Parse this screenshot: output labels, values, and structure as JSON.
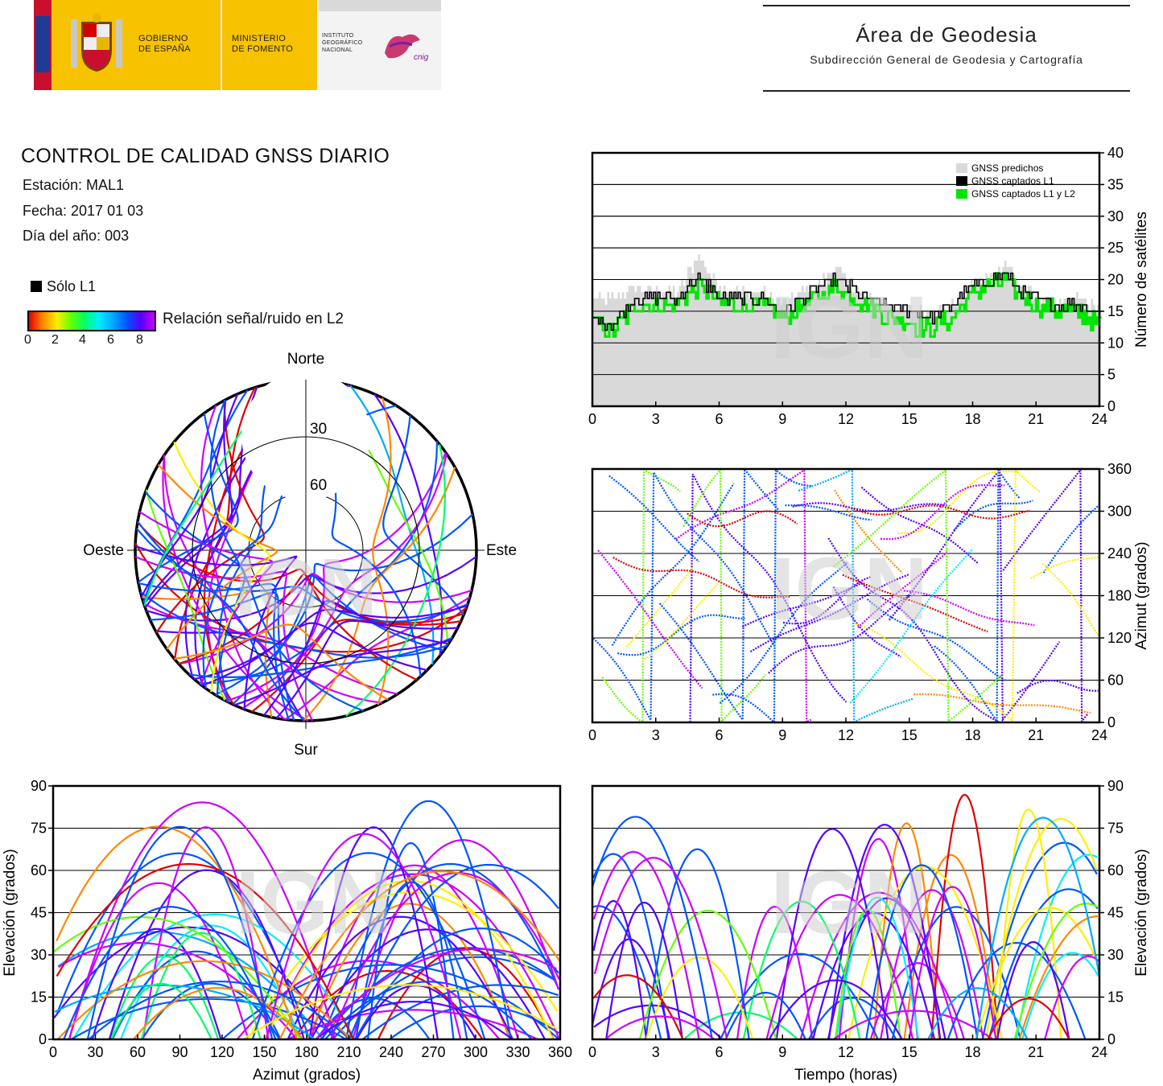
{
  "header": {
    "gobierno": "GOBIERNO\nDE ESPAÑA",
    "ministerio": "MINISTERIO\nDE FOMENTO",
    "instituto": "INSTITUTO\nGEOGRÁFICO\nNACIONAL",
    "cnig": "cnig",
    "area_title": "Área de Geodesia",
    "area_sub": "Subdirección General de Geodesia y Cartografía"
  },
  "report": {
    "title": "CONTROL DE CALIDAD GNSS DIARIO",
    "station": "Estación: MAL1",
    "date": "Fecha: 2017 01 03",
    "doy": "Día del año: 003",
    "solo_l1": "Sólo L1",
    "snr_label": "Relación señal/ruido en L2",
    "snr_ticks": [
      "0",
      "2",
      "4",
      "6",
      "8"
    ]
  },
  "watermark": "IGN",
  "colors": {
    "predicted": "#d9d9d9",
    "l1": "#000000",
    "l1l2": "#00e600",
    "snr_scale": [
      "#e00000",
      "#ff8800",
      "#ffee00",
      "#66ff00",
      "#00ff66",
      "#00eeff",
      "#00aaff",
      "#0055ff",
      "#5500ff",
      "#cc00ff"
    ]
  },
  "chart_data": [
    {
      "type": "area",
      "id": "satellite-count",
      "x": [
        0,
        1,
        2,
        3,
        4,
        4.5,
        5,
        5.5,
        6,
        7,
        8,
        9,
        10,
        11,
        11.5,
        12,
        13,
        14,
        15,
        16,
        17,
        18,
        19,
        19.5,
        20,
        21,
        22,
        23,
        24
      ],
      "series": [
        {
          "name": "GNSS predichos",
          "values": [
            17,
            17,
            19,
            18,
            18,
            21,
            24,
            21,
            19,
            18,
            18,
            16,
            18,
            20,
            22,
            20,
            17,
            16,
            15,
            15,
            16,
            19,
            21,
            23,
            20,
            17,
            16,
            17,
            15
          ]
        },
        {
          "name": "GNSS captados L1",
          "values": [
            14,
            13,
            17,
            17,
            17,
            19,
            20,
            19,
            17,
            17,
            17,
            15,
            17,
            19,
            20,
            19,
            17,
            16,
            15,
            14,
            16,
            19,
            20,
            21,
            19,
            17,
            16,
            16,
            15
          ]
        },
        {
          "name": "GNSS captados L1 y L2",
          "values": [
            13,
            12,
            16,
            16,
            16,
            18,
            19,
            18,
            16,
            16,
            16,
            14,
            16,
            18,
            19,
            18,
            16,
            14,
            13,
            12,
            14,
            18,
            19,
            20,
            18,
            16,
            15,
            15,
            13
          ]
        }
      ],
      "xlim": [
        0,
        24
      ],
      "ylim": [
        0,
        40
      ],
      "xticks": [
        "0",
        "3",
        "6",
        "9",
        "12",
        "15",
        "18",
        "21",
        "24"
      ],
      "yticks": [
        "0",
        "5",
        "10",
        "15",
        "20",
        "25",
        "30",
        "35",
        "40"
      ],
      "ylabel": "Número de satélites",
      "legend": "top-right",
      "grid": true
    },
    {
      "type": "line",
      "id": "azimuth-time",
      "xlim": [
        0,
        24
      ],
      "ylim": [
        0,
        360
      ],
      "xticks": [
        "0",
        "3",
        "6",
        "9",
        "12",
        "15",
        "18",
        "21",
        "24"
      ],
      "yticks": [
        "0",
        "60",
        "120",
        "180",
        "240",
        "300",
        "360"
      ],
      "ylabel": "Azimut (grados)",
      "grid": true
    },
    {
      "type": "scatter",
      "id": "skyplot",
      "labels": {
        "north": "Norte",
        "south": "Sur",
        "east": "Este",
        "west": "Oeste"
      },
      "rings": [
        "30",
        "60"
      ]
    },
    {
      "type": "line",
      "id": "elevation-azimuth",
      "xlim": [
        0,
        360
      ],
      "ylim": [
        0,
        90
      ],
      "xticks": [
        "0",
        "30",
        "60",
        "90",
        "120",
        "150",
        "180",
        "210",
        "240",
        "270",
        "300",
        "330",
        "360"
      ],
      "yticks": [
        "0",
        "15",
        "30",
        "45",
        "60",
        "75",
        "90"
      ],
      "xlabel": "Azimut (grados)",
      "ylabel": "Elevación (grados)",
      "grid": true
    },
    {
      "type": "line",
      "id": "elevation-time",
      "xlim": [
        0,
        24
      ],
      "ylim": [
        0,
        90
      ],
      "xticks": [
        "0",
        "3",
        "6",
        "9",
        "12",
        "15",
        "18",
        "21",
        "24"
      ],
      "yticks": [
        "0",
        "15",
        "30",
        "45",
        "60",
        "75",
        "90"
      ],
      "xlabel": "Tiempo (horas)",
      "ylabel": "Elevación (grados)",
      "grid": true
    }
  ]
}
